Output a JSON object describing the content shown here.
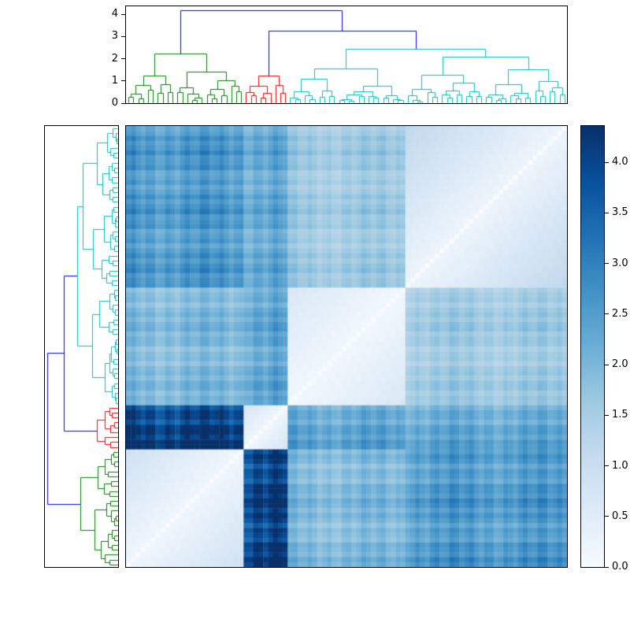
{
  "figure": {
    "background": "#ffffff"
  },
  "chart_data": {
    "type": "heatmap",
    "subtype": "clustered-distance-matrix-with-dendrograms",
    "title": "",
    "colormap": "Blues",
    "vmin": 0.0,
    "vmax": 4.36,
    "n_leaves": 90,
    "grid": false,
    "legend": null,
    "diagonal_value": 0.0,
    "colormap_stops": [
      {
        "t": 0.0,
        "c": [
          247,
          251,
          255
        ]
      },
      {
        "t": 0.125,
        "c": [
          222,
          235,
          247
        ]
      },
      {
        "t": 0.25,
        "c": [
          198,
          219,
          239
        ]
      },
      {
        "t": 0.375,
        "c": [
          158,
          202,
          225
        ]
      },
      {
        "t": 0.5,
        "c": [
          107,
          174,
          214
        ]
      },
      {
        "t": 0.625,
        "c": [
          66,
          146,
          198
        ]
      },
      {
        "t": 0.75,
        "c": [
          33,
          113,
          181
        ]
      },
      {
        "t": 0.875,
        "c": [
          8,
          81,
          156
        ]
      },
      {
        "t": 1.0,
        "c": [
          8,
          48,
          107
        ]
      }
    ],
    "top_axis": {
      "range": [
        0,
        4.36
      ],
      "ticks": [
        {
          "label": "0",
          "value": 0
        },
        {
          "label": "1",
          "value": 1
        },
        {
          "label": "2",
          "value": 2
        },
        {
          "label": "3",
          "value": 3
        },
        {
          "label": "4",
          "value": 4
        }
      ]
    },
    "colorbar": {
      "range": [
        0,
        4.36
      ],
      "ticks": [
        {
          "label": "0.0",
          "value": 0.0
        },
        {
          "label": "0.5",
          "value": 0.5
        },
        {
          "label": "1.0",
          "value": 1.0
        },
        {
          "label": "1.5",
          "value": 1.5
        },
        {
          "label": "2.0",
          "value": 2.0
        },
        {
          "label": "2.5",
          "value": 2.5
        },
        {
          "label": "3.0",
          "value": 3.0
        },
        {
          "label": "3.5",
          "value": 3.5
        },
        {
          "label": "4.0",
          "value": 4.0
        }
      ]
    },
    "clusters": {
      "order_cols": [
        "G",
        "R",
        "C1",
        "C2"
      ],
      "order_rows": [
        "C2",
        "C1",
        "R",
        "G"
      ],
      "defs": {
        "G": {
          "n": 24,
          "color": "#008000",
          "maxh": 2.25,
          "intra": 0.8
        },
        "R": {
          "n": 9,
          "color": "#ff0000",
          "maxh": 1.25,
          "intra": 0.7
        },
        "C1": {
          "n": 24,
          "color": "#00bfbf",
          "maxh": 1.55,
          "intra": 0.6
        },
        "C2": {
          "n": 33,
          "color": "#00bfbf",
          "maxh": 2.1,
          "intra": 1.1
        }
      },
      "block_distances": {
        "G": {
          "R": 4.15,
          "C1": 1.95,
          "C2": 2.55
        },
        "R": {
          "G": 4.15,
          "C1": 2.35,
          "C2": 2.3
        },
        "C1": {
          "G": 1.95,
          "R": 2.35,
          "C2": 1.6
        },
        "C2": {
          "G": 2.55,
          "R": 2.3,
          "C1": 1.6
        }
      }
    },
    "link_color_above_threshold": "#0000ff",
    "top_tree": {
      "h": 4.2,
      "color": "#0000ff",
      "children": [
        {
          "cluster": "G"
        },
        {
          "h": 3.25,
          "color": "#0000ff",
          "children": [
            {
              "cluster": "R"
            },
            {
              "h": 2.45,
              "color": "#00bfbf",
              "children": [
                {
                  "cluster": "C1"
                },
                {
                  "cluster": "C2"
                }
              ]
            }
          ]
        }
      ]
    },
    "left_tree": {
      "h": 4.2,
      "color": "#0000ff",
      "children": [
        {
          "h": 3.25,
          "color": "#0000ff",
          "children": [
            {
              "h": 2.45,
              "color": "#00bfbf",
              "children": [
                {
                  "cluster": "C2"
                },
                {
                  "cluster": "C1"
                }
              ]
            },
            {
              "cluster": "R"
            }
          ]
        },
        {
          "cluster": "G"
        }
      ]
    }
  }
}
